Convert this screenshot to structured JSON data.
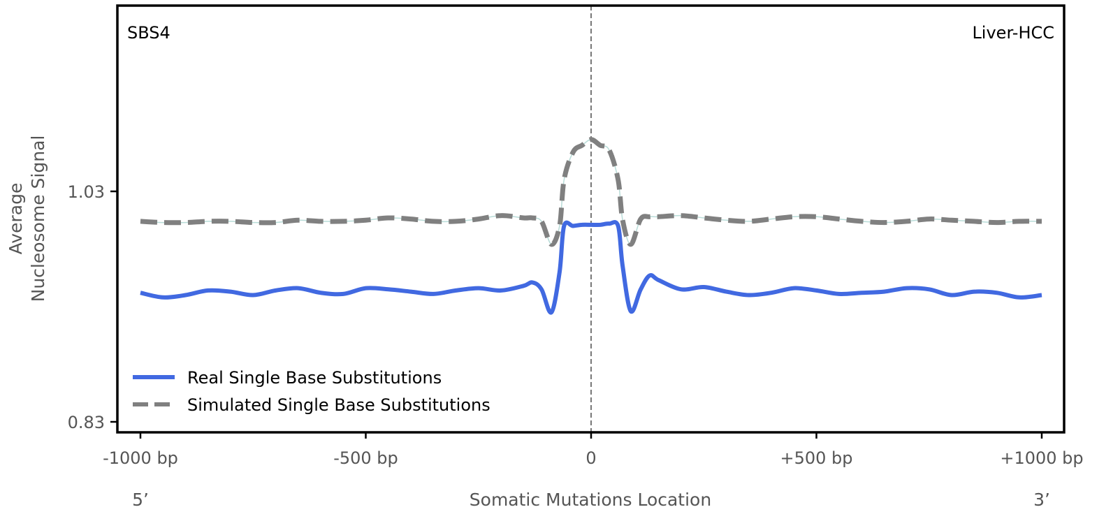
{
  "chart_data": {
    "type": "line",
    "corner_left": "SBS4",
    "corner_right": "Liver-HCC",
    "xlabel": "Somatic Mutations Location",
    "ylabel": [
      "Average",
      "Nucleosome Signal"
    ],
    "x_end_labels": [
      "5’",
      "3’"
    ],
    "xlim": [
      -1000,
      1000
    ],
    "ylim": [
      0.821,
      1.191
    ],
    "xticks": [
      {
        "value": -1000,
        "label": "-1000 bp"
      },
      {
        "value": -500,
        "label": "-500 bp"
      },
      {
        "value": 0,
        "label": "0"
      },
      {
        "value": 500,
        "label": "+500 bp"
      },
      {
        "value": 1000,
        "label": "+1000 bp"
      }
    ],
    "yticks": [
      {
        "value": 1.03,
        "label": "1.03"
      },
      {
        "value": 0.83,
        "label": "0.83"
      }
    ],
    "vline": 0,
    "legend_position": "lower-left",
    "x": [
      -1000,
      -950,
      -900,
      -850,
      -800,
      -750,
      -700,
      -650,
      -600,
      -550,
      -500,
      -450,
      -400,
      -350,
      -300,
      -250,
      -200,
      -150,
      -130,
      -110,
      -88,
      -70,
      -60,
      -40,
      -20,
      0,
      20,
      40,
      60,
      70,
      88,
      110,
      130,
      150,
      200,
      250,
      300,
      350,
      400,
      450,
      500,
      550,
      600,
      650,
      700,
      750,
      800,
      850,
      900,
      950,
      1000
    ],
    "series": [
      {
        "name": "Real Single Base Substitutions",
        "color": "#4169e1",
        "style": "solid",
        "values": [
          0.942,
          0.938,
          0.94,
          0.944,
          0.943,
          0.94,
          0.944,
          0.946,
          0.942,
          0.941,
          0.946,
          0.945,
          0.943,
          0.941,
          0.944,
          0.946,
          0.944,
          0.948,
          0.951,
          0.945,
          0.925,
          0.96,
          1.0,
          1.0,
          1.001,
          1.001,
          1.001,
          1.002,
          1.0,
          0.965,
          0.926,
          0.945,
          0.957,
          0.953,
          0.945,
          0.947,
          0.943,
          0.94,
          0.942,
          0.946,
          0.944,
          0.941,
          0.942,
          0.943,
          0.946,
          0.945,
          0.94,
          0.943,
          0.942,
          0.938,
          0.94
        ]
      },
      {
        "name": "Simulated Single Base Substitutions",
        "color": "#808080",
        "style": "dashed",
        "values": [
          1.004,
          1.003,
          1.003,
          1.004,
          1.004,
          1.003,
          1.003,
          1.005,
          1.004,
          1.004,
          1.005,
          1.007,
          1.006,
          1.004,
          1.004,
          1.006,
          1.009,
          1.007,
          1.007,
          1.004,
          0.984,
          1.0,
          1.04,
          1.064,
          1.07,
          1.075,
          1.07,
          1.066,
          1.04,
          1.005,
          0.984,
          1.006,
          1.008,
          1.008,
          1.009,
          1.007,
          1.005,
          1.004,
          1.006,
          1.008,
          1.008,
          1.006,
          1.004,
          1.003,
          1.004,
          1.006,
          1.005,
          1.004,
          1.003,
          1.004,
          1.004
        ]
      }
    ]
  }
}
